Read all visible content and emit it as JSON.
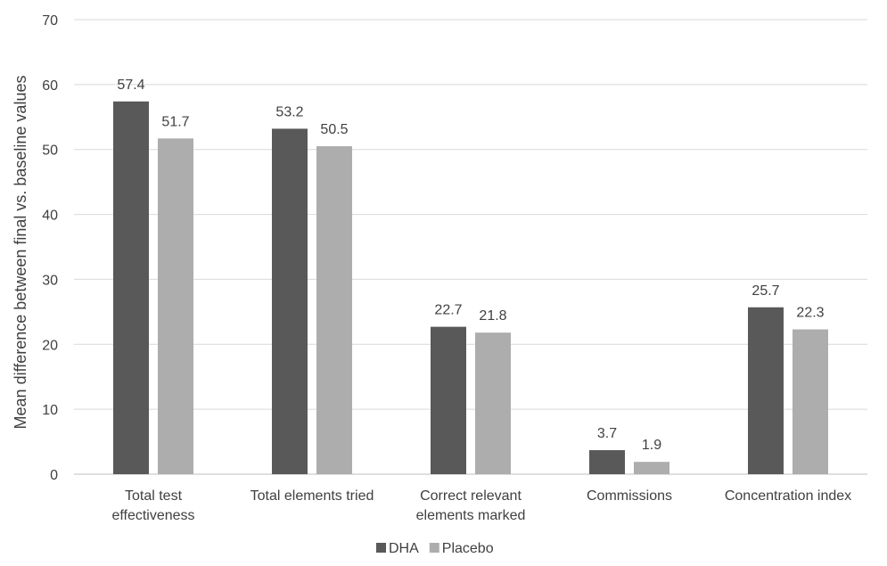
{
  "chart_data": {
    "type": "bar",
    "categories": [
      [
        "Total test",
        "effectiveness"
      ],
      [
        "Total elements tried"
      ],
      [
        "Correct relevant",
        "elements marked"
      ],
      [
        "Commissions"
      ],
      [
        "Concentration index"
      ]
    ],
    "series": [
      {
        "name": "DHA",
        "color": "#595959",
        "values": [
          57.4,
          53.2,
          22.7,
          3.7,
          25.7
        ]
      },
      {
        "name": "Placebo",
        "color": "#adadad",
        "values": [
          51.7,
          50.5,
          21.8,
          1.9,
          22.3
        ]
      }
    ],
    "ylabel": "Mean difference between final vs. baseline values",
    "xlabel": "",
    "ylim": [
      0,
      70
    ],
    "yticks": [
      0,
      10,
      20,
      30,
      40,
      50,
      60,
      70
    ],
    "grid": true,
    "legend": "bottom-center",
    "colors": {
      "gridline": "#d9d9d9",
      "axis": "#bfbfbf",
      "text": "#404040"
    }
  }
}
